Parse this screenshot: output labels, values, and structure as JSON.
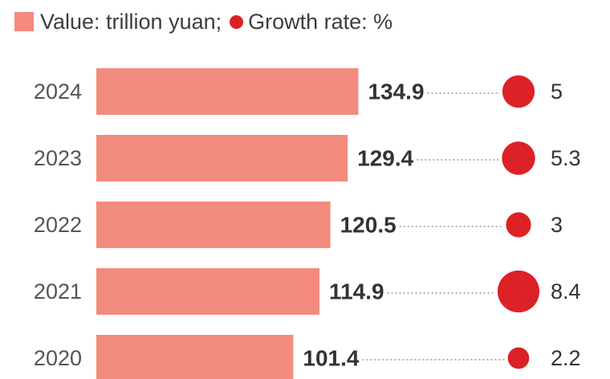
{
  "legend": {
    "value_label": "Value: trillion yuan;",
    "growth_label": "Growth rate: %"
  },
  "colors": {
    "bar": "#f28b7e",
    "dot": "#dc2127",
    "year_text": "#555555",
    "value_text": "#333333",
    "leader": "#9a9a9a"
  },
  "chart_data": {
    "type": "bar",
    "orientation": "horizontal",
    "categories": [
      "2024",
      "2023",
      "2022",
      "2021",
      "2020"
    ],
    "series": [
      {
        "name": "Value: trillion yuan",
        "values": [
          134.9,
          129.4,
          120.5,
          114.9,
          101.4
        ],
        "value_labels": [
          "134.9",
          "129.4",
          "120.5",
          "114.9",
          "101.4"
        ]
      },
      {
        "name": "Growth rate: %",
        "values": [
          5,
          5.3,
          3,
          8.4,
          2.2
        ],
        "value_labels": [
          "5",
          "5.3",
          "3",
          "8.4",
          "2.2"
        ]
      }
    ],
    "legend": "top-left",
    "grid": false
  }
}
